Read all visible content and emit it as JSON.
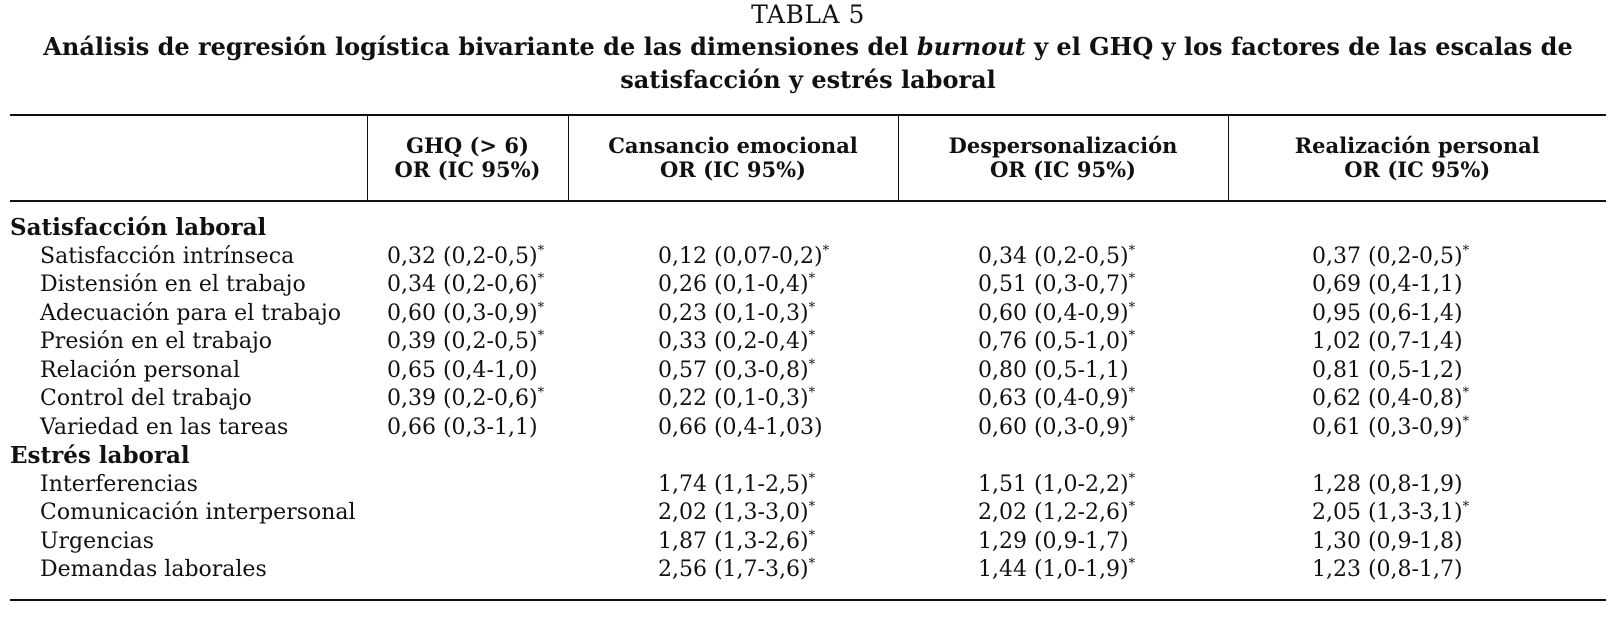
{
  "table_label": "TABLA 5",
  "caption": {
    "part1": "Análisis de regresión logística bivariante de las dimensiones del ",
    "italic": "burnout",
    "part2": " y el GHQ y los factores de las escalas de satisfacción y estrés laboral"
  },
  "columns": [
    {
      "line1": "",
      "line2": ""
    },
    {
      "line1": "GHQ (> 6)",
      "line2": "OR (IC 95%)"
    },
    {
      "line1": "Cansancio emocional",
      "line2": "OR (IC 95%)"
    },
    {
      "line1": "Despersonalización",
      "line2": "OR (IC 95%)"
    },
    {
      "line1": "Realización personal",
      "line2": "OR (IC 95%)"
    }
  ],
  "sections": [
    {
      "title": "Satisfacción laboral",
      "rows": [
        {
          "label": "Satisfacción intrínseca",
          "cells": [
            {
              "value": "0,32 (0,2-0,5)",
              "mark": "*"
            },
            {
              "value": "0,12 (0,07-0,2)",
              "mark": "*"
            },
            {
              "value": "0,34 (0,2-0,5)",
              "mark": "*"
            },
            {
              "value": "0,37 (0,2-0,5)",
              "mark": "*"
            }
          ]
        },
        {
          "label": "Distensión en el trabajo",
          "cells": [
            {
              "value": "0,34 (0,2-0,6)",
              "mark": "*"
            },
            {
              "value": "0,26 (0,1-0,4)",
              "mark": "*"
            },
            {
              "value": "0,51 (0,3-0,7)",
              "mark": "*"
            },
            {
              "value": "0,69 (0,4-1,1)",
              "mark": ""
            }
          ]
        },
        {
          "label": "Adecuación para el trabajo",
          "cells": [
            {
              "value": "0,60 (0,3-0,9)",
              "mark": "*"
            },
            {
              "value": "0,23 (0,1-0,3)",
              "mark": "*"
            },
            {
              "value": "0,60 (0,4-0,9)",
              "mark": "*"
            },
            {
              "value": "0,95 (0,6-1,4)",
              "mark": ""
            }
          ]
        },
        {
          "label": "Presión en el trabajo",
          "cells": [
            {
              "value": "0,39 (0,2-0,5)",
              "mark": "*"
            },
            {
              "value": "0,33 (0,2-0,4)",
              "mark": "*"
            },
            {
              "value": "0,76 (0,5-1,0)",
              "mark": "*"
            },
            {
              "value": "1,02 (0,7-1,4)",
              "mark": ""
            }
          ]
        },
        {
          "label": "Relación personal",
          "cells": [
            {
              "value": "0,65 (0,4-1,0)",
              "mark": ""
            },
            {
              "value": "0,57 (0,3-0,8)",
              "mark": "*"
            },
            {
              "value": "0,80 (0,5-1,1)",
              "mark": ""
            },
            {
              "value": "0,81 (0,5-1,2)",
              "mark": ""
            }
          ]
        },
        {
          "label": "Control del trabajo",
          "cells": [
            {
              "value": "0,39 (0,2-0,6)",
              "mark": "*"
            },
            {
              "value": "0,22 (0,1-0,3)",
              "mark": "*"
            },
            {
              "value": "0,63 (0,4-0,9)",
              "mark": "*"
            },
            {
              "value": "0,62 (0,4-0,8)",
              "mark": "*"
            }
          ]
        },
        {
          "label": "Variedad en las tareas",
          "cells": [
            {
              "value": "0,66 (0,3-1,1)",
              "mark": ""
            },
            {
              "value": "0,66 (0,4-1,03)",
              "mark": ""
            },
            {
              "value": "0,60 (0,3-0,9)",
              "mark": "*"
            },
            {
              "value": "0,61 (0,3-0,9)",
              "mark": "*"
            }
          ]
        }
      ]
    },
    {
      "title": "Estrés laboral",
      "rows": [
        {
          "label": "Interferencias",
          "cells": [
            {
              "value": "",
              "mark": ""
            },
            {
              "value": "1,74 (1,1-2,5)",
              "mark": "*"
            },
            {
              "value": "1,51 (1,0-2,2)",
              "mark": "*"
            },
            {
              "value": "1,28 (0,8-1,9)",
              "mark": ""
            }
          ]
        },
        {
          "label": "Comunicación interpersonal",
          "cells": [
            {
              "value": "",
              "mark": ""
            },
            {
              "value": "2,02 (1,3-3,0)",
              "mark": "*"
            },
            {
              "value": "2,02 (1,2-2,6)",
              "mark": "*"
            },
            {
              "value": "2,05 (1,3-3,1)",
              "mark": "*"
            }
          ]
        },
        {
          "label": "Urgencias",
          "cells": [
            {
              "value": "",
              "mark": ""
            },
            {
              "value": "1,87 (1,3-2,6)",
              "mark": "*"
            },
            {
              "value": "1,29 (0,9-1,7)",
              "mark": ""
            },
            {
              "value": "1,30 (0,9-1,8)",
              "mark": ""
            }
          ]
        },
        {
          "label": "Demandas laborales",
          "cells": [
            {
              "value": "",
              "mark": ""
            },
            {
              "value": "2,56 (1,7-3,6)",
              "mark": "*"
            },
            {
              "value": "1,44 (1,0-1,9)",
              "mark": "*"
            },
            {
              "value": "1,23 (0,8-1,7)",
              "mark": ""
            }
          ]
        }
      ]
    }
  ]
}
